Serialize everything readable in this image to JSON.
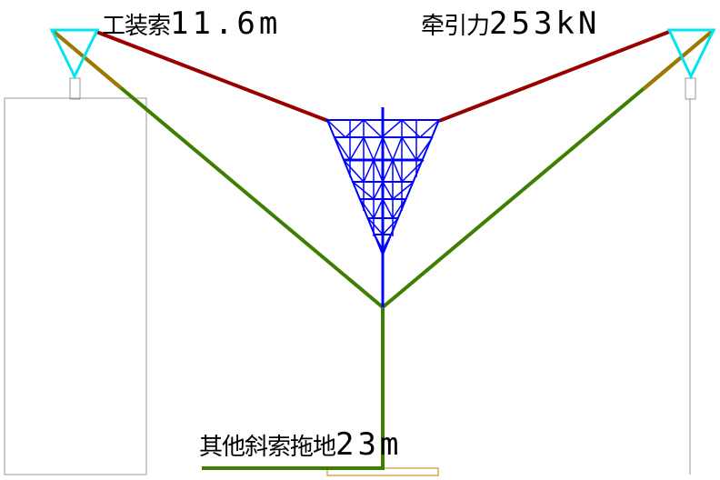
{
  "labels": {
    "installation_cable": {
      "text": "工装索",
      "value": "11.6m"
    },
    "traction_force": {
      "text": "牵引力",
      "value": "253kN"
    },
    "other_cables": {
      "text": "其他斜索拖地",
      "value": "23m"
    }
  },
  "colors": {
    "installation_cable": "#990000",
    "stay_cable": "#3f7f00",
    "stay_cable_near_anchor": "#a07800",
    "tower_truss": "#0000ff",
    "anchor_frame": "#00e5ee",
    "support_outline": "#999999",
    "ground_pad": "#cc7a00"
  }
}
